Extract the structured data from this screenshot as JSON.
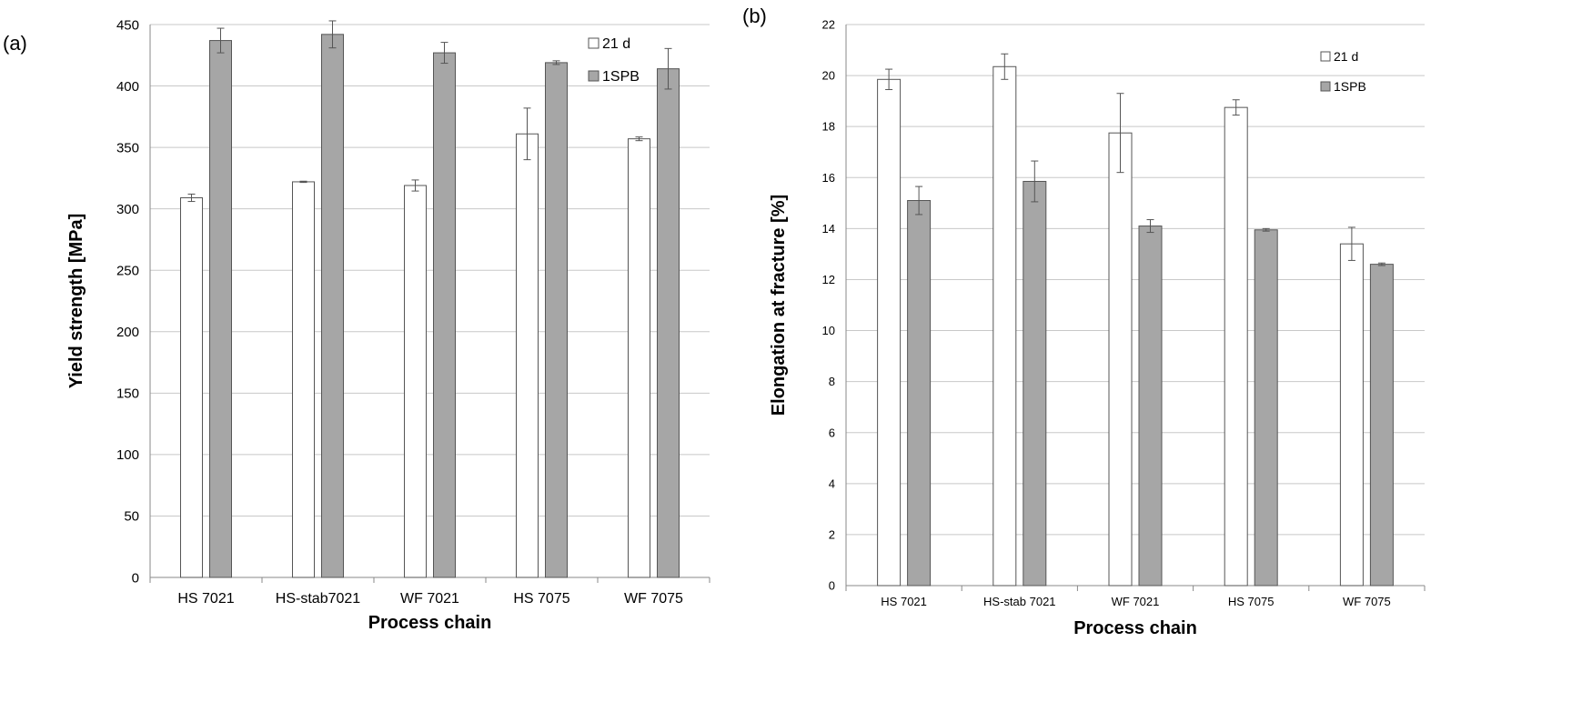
{
  "colors": {
    "series_21d": "#ffffff",
    "series_1spb": "#a6a6a6",
    "bar_outline": "#555555",
    "grid": "#c8c8c8",
    "error_bar": "#555555"
  },
  "chart_data": [
    {
      "type": "bar",
      "panel_label": "(a)",
      "title": "",
      "xlabel": "Process chain",
      "ylabel": "Yield strength [MPa]",
      "ylim": [
        0,
        450
      ],
      "ytick_step": 50,
      "yticks": [
        "0",
        "50",
        "100",
        "150",
        "200",
        "250",
        "300",
        "350",
        "400",
        "450"
      ],
      "grid": true,
      "legend_position": "top-right",
      "categories": [
        "HS 7021",
        "HS-stab7021",
        "WF 7021",
        "HS 7075",
        "WF 7075"
      ],
      "series": [
        {
          "name": "21 d",
          "values": [
            309,
            322,
            319,
            361,
            357
          ],
          "errors": [
            3,
            0.5,
            4.5,
            21,
            1.5
          ]
        },
        {
          "name": "1SPB",
          "values": [
            437,
            442,
            427,
            419,
            414
          ],
          "errors": [
            10,
            11,
            8.5,
            1.5,
            16.5
          ]
        }
      ]
    },
    {
      "type": "bar",
      "panel_label": "(b)",
      "title": "",
      "xlabel": "Process chain",
      "ylabel": "Elongation at fracture [%]",
      "ylim": [
        0,
        22
      ],
      "ytick_step": 2,
      "yticks": [
        "0",
        "2",
        "4",
        "6",
        "8",
        "10",
        "12",
        "14",
        "16",
        "18",
        "20",
        "22"
      ],
      "grid": true,
      "legend_position": "top-right",
      "categories": [
        "HS 7021",
        "HS-stab 7021",
        "WF 7021",
        "HS 7075",
        "WF 7075"
      ],
      "series": [
        {
          "name": "21 d",
          "values": [
            19.85,
            20.35,
            17.75,
            18.75,
            13.4
          ],
          "errors": [
            0.4,
            0.5,
            1.55,
            0.3,
            0.65
          ]
        },
        {
          "name": "1SPB",
          "values": [
            15.1,
            15.85,
            14.1,
            13.95,
            12.6
          ],
          "errors": [
            0.55,
            0.8,
            0.25,
            0.05,
            0.05
          ]
        }
      ]
    }
  ]
}
